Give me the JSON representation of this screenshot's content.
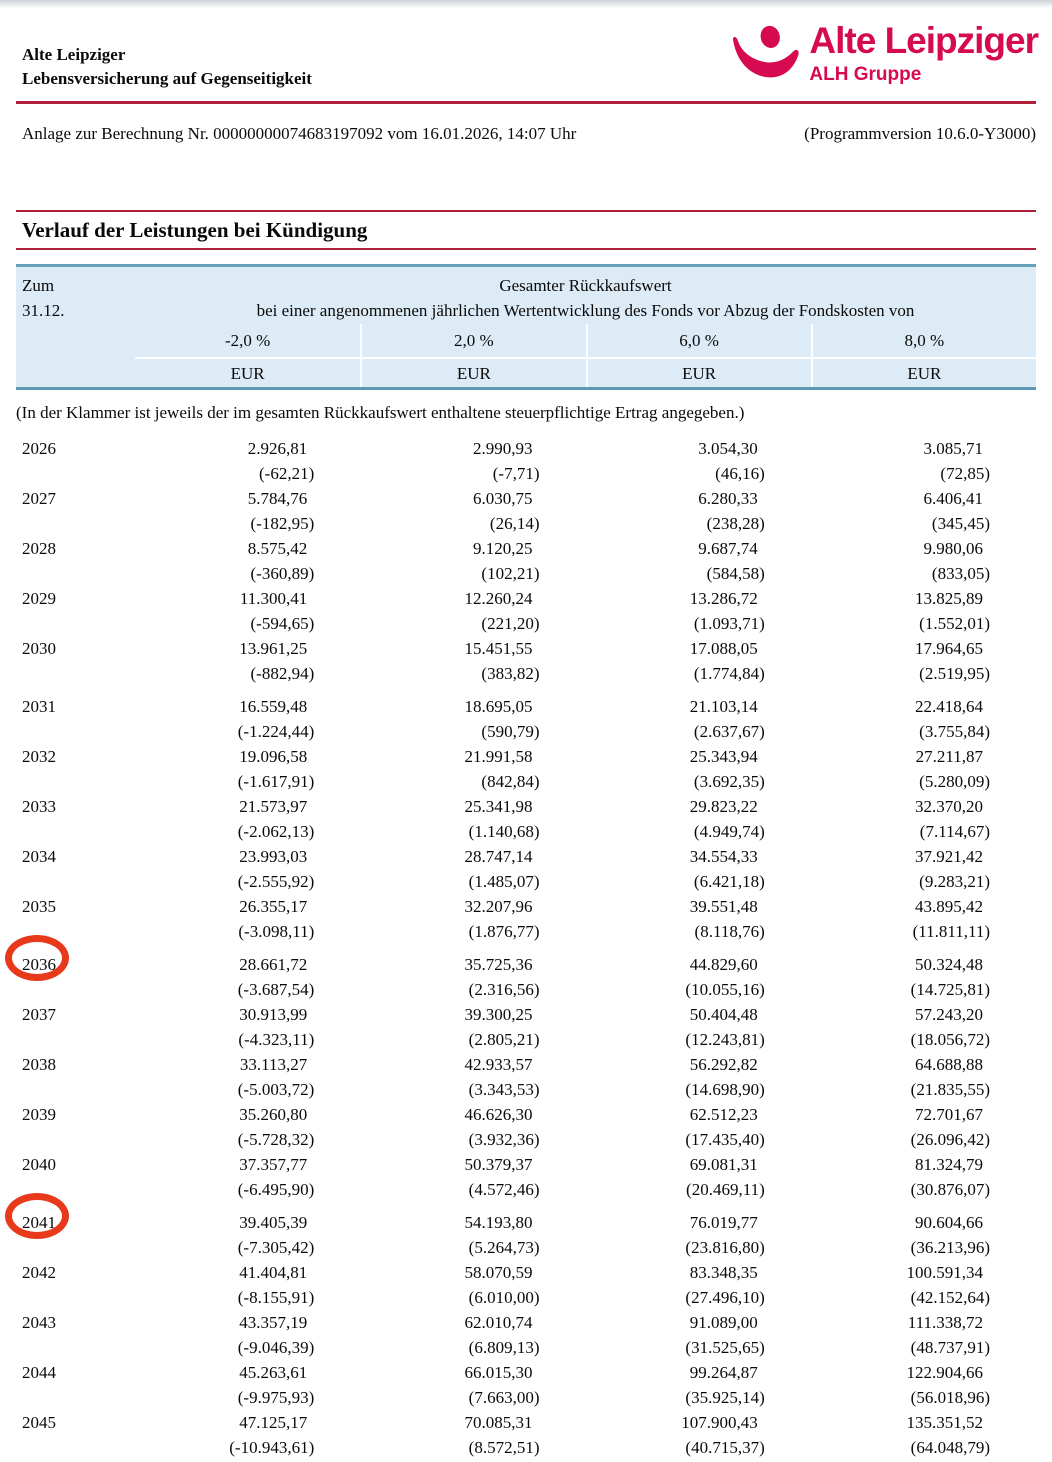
{
  "colors": {
    "rule_red": "#b01f3c",
    "logo_red": "#d60a50",
    "header_bg": "#dcebf5",
    "header_border": "#68a1bc",
    "circle_red": "#e8391b"
  },
  "letterhead": {
    "company_line1": "Alte Leipziger",
    "company_line2": "Lebensversicherung auf Gegenseitigkeit",
    "logo": {
      "icon": "alh-figure-icon",
      "brand": "Alte Leipziger",
      "group": "ALH Gruppe"
    },
    "doc_line_left": "Anlage zur Berechnung Nr. 00000000074683197092 vom 16.01.2026, 14:07 Uhr",
    "doc_line_right": "(Programmversion 10.6.0-Y3000)"
  },
  "section": {
    "title": "Verlauf der Leistungen bei Kündigung"
  },
  "table": {
    "header": {
      "col0_line1": "Zum",
      "col0_line2": "31.12.",
      "group_title": "Gesamter Rückkaufswert",
      "group_subtitle": "bei einer angenommenen jährlichen Wertentwicklung des Fonds vor Abzug der Fondskosten von",
      "rates": [
        "-2,0 %",
        "2,0 %",
        "6,0 %",
        "8,0 %"
      ],
      "units": [
        "EUR",
        "EUR",
        "EUR",
        "EUR"
      ]
    },
    "note": "(In der Klammer ist jeweils der im gesamten Rückkaufswert enthaltene steuerpflichtige Ertrag angegeben.)",
    "groups": [
      {
        "rows": [
          {
            "year": "2026",
            "values": [
              "2.926,81",
              "2.990,93",
              "3.054,30",
              "3.085,71"
            ],
            "taxable": [
              "(-62,21)",
              "(-7,71)",
              "(46,16)",
              "(72,85)"
            ]
          },
          {
            "year": "2027",
            "values": [
              "5.784,76",
              "6.030,75",
              "6.280,33",
              "6.406,41"
            ],
            "taxable": [
              "(-182,95)",
              "(26,14)",
              "(238,28)",
              "(345,45)"
            ]
          },
          {
            "year": "2028",
            "values": [
              "8.575,42",
              "9.120,25",
              "9.687,74",
              "9.980,06"
            ],
            "taxable": [
              "(-360,89)",
              "(102,21)",
              "(584,58)",
              "(833,05)"
            ]
          },
          {
            "year": "2029",
            "values": [
              "11.300,41",
              "12.260,24",
              "13.286,72",
              "13.825,89"
            ],
            "taxable": [
              "(-594,65)",
              "(221,20)",
              "(1.093,71)",
              "(1.552,01)"
            ]
          },
          {
            "year": "2030",
            "values": [
              "13.961,25",
              "15.451,55",
              "17.088,05",
              "17.964,65"
            ],
            "taxable": [
              "(-882,94)",
              "(383,82)",
              "(1.774,84)",
              "(2.519,95)"
            ]
          }
        ]
      },
      {
        "rows": [
          {
            "year": "2031",
            "values": [
              "16.559,48",
              "18.695,05",
              "21.103,14",
              "22.418,64"
            ],
            "taxable": [
              "(-1.224,44)",
              "(590,79)",
              "(2.637,67)",
              "(3.755,84)"
            ]
          },
          {
            "year": "2032",
            "values": [
              "19.096,58",
              "21.991,58",
              "25.343,94",
              "27.211,87"
            ],
            "taxable": [
              "(-1.617,91)",
              "(842,84)",
              "(3.692,35)",
              "(5.280,09)"
            ]
          },
          {
            "year": "2033",
            "values": [
              "21.573,97",
              "25.341,98",
              "29.823,22",
              "32.370,20"
            ],
            "taxable": [
              "(-2.062,13)",
              "(1.140,68)",
              "(4.949,74)",
              "(7.114,67)"
            ]
          },
          {
            "year": "2034",
            "values": [
              "23.993,03",
              "28.747,14",
              "34.554,33",
              "37.921,42"
            ],
            "taxable": [
              "(-2.555,92)",
              "(1.485,07)",
              "(6.421,18)",
              "(9.283,21)"
            ]
          },
          {
            "year": "2035",
            "values": [
              "26.355,17",
              "32.207,96",
              "39.551,48",
              "43.895,42"
            ],
            "taxable": [
              "(-3.098,11)",
              "(1.876,77)",
              "(8.118,76)",
              "(11.811,11)"
            ]
          }
        ]
      },
      {
        "rows": [
          {
            "year": "2036",
            "values": [
              "28.661,72",
              "35.725,36",
              "44.829,60",
              "50.324,48"
            ],
            "taxable": [
              "(-3.687,54)",
              "(2.316,56)",
              "(10.055,16)",
              "(14.725,81)"
            ]
          },
          {
            "year": "2037",
            "values": [
              "30.913,99",
              "39.300,25",
              "50.404,48",
              "57.243,20"
            ],
            "taxable": [
              "(-4.323,11)",
              "(2.805,21)",
              "(12.243,81)",
              "(18.056,72)"
            ]
          },
          {
            "year": "2038",
            "values": [
              "33.113,27",
              "42.933,57",
              "56.292,82",
              "64.688,88"
            ],
            "taxable": [
              "(-5.003,72)",
              "(3.343,53)",
              "(14.698,90)",
              "(21.835,55)"
            ]
          },
          {
            "year": "2039",
            "values": [
              "35.260,80",
              "46.626,30",
              "62.512,23",
              "72.701,67"
            ],
            "taxable": [
              "(-5.728,32)",
              "(3.932,36)",
              "(17.435,40)",
              "(26.096,42)"
            ]
          },
          {
            "year": "2040",
            "values": [
              "37.357,77",
              "50.379,37",
              "69.081,31",
              "81.324,79"
            ],
            "taxable": [
              "(-6.495,90)",
              "(4.572,46)",
              "(20.469,11)",
              "(30.876,07)"
            ]
          }
        ]
      },
      {
        "rows": [
          {
            "year": "2041",
            "values": [
              "39.405,39",
              "54.193,80",
              "76.019,77",
              "90.604,66"
            ],
            "taxable": [
              "(-7.305,42)",
              "(5.264,73)",
              "(23.816,80)",
              "(36.213,96)"
            ]
          },
          {
            "year": "2042",
            "values": [
              "41.404,81",
              "58.070,59",
              "83.348,35",
              "100.591,34"
            ],
            "taxable": [
              "(-8.155,91)",
              "(6.010,00)",
              "(27.496,10)",
              "(42.152,64)"
            ]
          },
          {
            "year": "2043",
            "values": [
              "43.357,19",
              "62.010,74",
              "91.089,00",
              "111.338,72"
            ],
            "taxable": [
              "(-9.046,39)",
              "(6.809,13)",
              "(31.525,65)",
              "(48.737,91)"
            ]
          },
          {
            "year": "2044",
            "values": [
              "45.263,61",
              "66.015,30",
              "99.264,87",
              "122.904,66"
            ],
            "taxable": [
              "(-9.975,93)",
              "(7.663,00)",
              "(35.925,14)",
              "(56.018,96)"
            ]
          },
          {
            "year": "2045",
            "values": [
              "47.125,17",
              "70.085,31",
              "107.900,43",
              "135.351,52"
            ],
            "taxable": [
              "(-10.943,61)",
              "(8.572,51)",
              "(40.715,37)",
              "(64.048,79)"
            ]
          }
        ]
      }
    ]
  },
  "annotations": {
    "circled_years": [
      "2036",
      "2041"
    ]
  }
}
